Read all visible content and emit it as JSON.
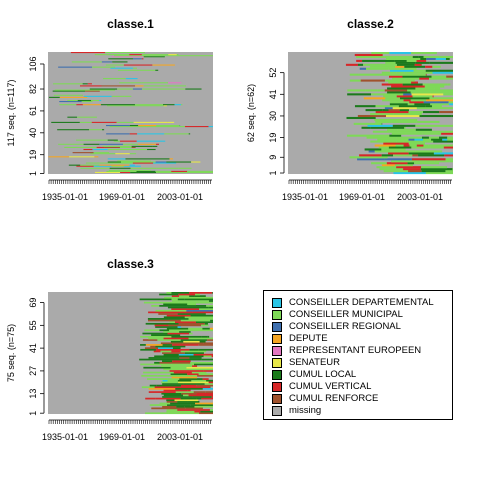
{
  "chart_data": [
    {
      "type": "sequence-index-plot",
      "title": "classe.1",
      "ylabel": "117 seq. (n=117)",
      "n_sequences": 117,
      "y_ticks": [
        1,
        19,
        40,
        61,
        82,
        106
      ],
      "x_ticks": [
        "1935-01-01",
        "1969-01-01",
        "2003-01-01"
      ]
    },
    {
      "type": "sequence-index-plot",
      "title": "classe.2",
      "ylabel": "62 seq. (n=62)",
      "n_sequences": 62,
      "y_ticks": [
        1,
        9,
        19,
        30,
        41,
        52
      ],
      "x_ticks": [
        "1935-01-01",
        "1969-01-01",
        "2003-01-01"
      ]
    },
    {
      "type": "sequence-index-plot",
      "title": "classe.3",
      "ylabel": "75 seq. (n=75)",
      "n_sequences": 75,
      "y_ticks": [
        1,
        13,
        27,
        41,
        55,
        69
      ],
      "x_ticks": [
        "1935-01-01",
        "1969-01-01",
        "2003-01-01"
      ]
    }
  ],
  "legend": {
    "items": [
      {
        "label": "CONSEILLER DEPARTEMENTAL",
        "color": "#29c5e6"
      },
      {
        "label": "CONSEILLER MUNICIPAL",
        "color": "#7ed957"
      },
      {
        "label": "CONSEILLER REGIONAL",
        "color": "#3f6fae"
      },
      {
        "label": "DEPUTE",
        "color": "#f5a623"
      },
      {
        "label": "REPRESENTANT EUROPEEN",
        "color": "#e377c2"
      },
      {
        "label": "SENATEUR",
        "color": "#e8e84a"
      },
      {
        "label": "CUMUL LOCAL",
        "color": "#1b7a1b"
      },
      {
        "label": "CUMUL VERTICAL",
        "color": "#d62728"
      },
      {
        "label": "CUMUL RENFORCE",
        "color": "#a0522d"
      },
      {
        "label": "missing",
        "color": "#aaaaaa"
      }
    ]
  }
}
